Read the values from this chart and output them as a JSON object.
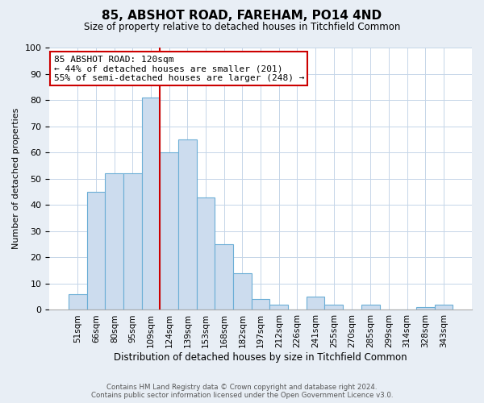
{
  "title": "85, ABSHOT ROAD, FAREHAM, PO14 4ND",
  "subtitle": "Size of property relative to detached houses in Titchfield Common",
  "xlabel": "Distribution of detached houses by size in Titchfield Common",
  "ylabel": "Number of detached properties",
  "bar_labels": [
    "51sqm",
    "66sqm",
    "80sqm",
    "95sqm",
    "109sqm",
    "124sqm",
    "139sqm",
    "153sqm",
    "168sqm",
    "182sqm",
    "197sqm",
    "212sqm",
    "226sqm",
    "241sqm",
    "255sqm",
    "270sqm",
    "285sqm",
    "299sqm",
    "314sqm",
    "328sqm",
    "343sqm"
  ],
  "bar_values": [
    6,
    45,
    52,
    52,
    81,
    60,
    65,
    43,
    25,
    14,
    4,
    2,
    0,
    5,
    2,
    0,
    2,
    0,
    0,
    1,
    2
  ],
  "bar_color": "#ccdcee",
  "bar_edge_color": "#6baed6",
  "vline_color": "#cc0000",
  "vline_index": 4.5,
  "annotation_title": "85 ABSHOT ROAD: 120sqm",
  "annotation_line1": "← 44% of detached houses are smaller (201)",
  "annotation_line2": "55% of semi-detached houses are larger (248) →",
  "annotation_box_edge": "#cc0000",
  "ylim": [
    0,
    100
  ],
  "yticks": [
    0,
    10,
    20,
    30,
    40,
    50,
    60,
    70,
    80,
    90,
    100
  ],
  "footer1": "Contains HM Land Registry data © Crown copyright and database right 2024.",
  "footer2": "Contains public sector information licensed under the Open Government Licence v3.0.",
  "bg_color": "#e8eef5",
  "plot_bg_color": "#ffffff"
}
